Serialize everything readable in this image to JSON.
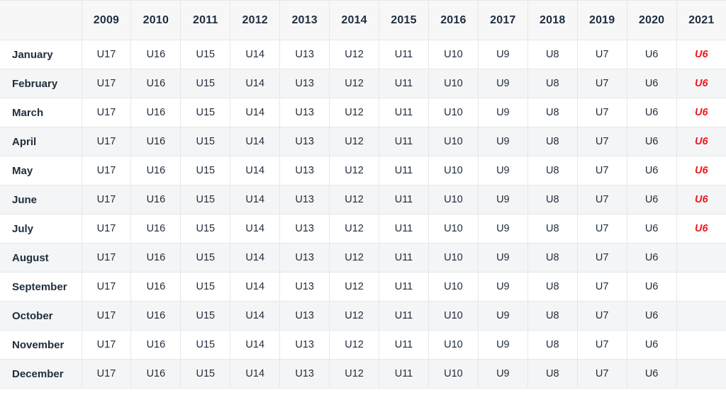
{
  "table": {
    "corner_label": "",
    "years": [
      "2009",
      "2010",
      "2011",
      "2012",
      "2013",
      "2014",
      "2015",
      "2016",
      "2017",
      "2018",
      "2019",
      "2020",
      "2021"
    ],
    "rows": [
      {
        "month": "January",
        "values": [
          "U17",
          "U16",
          "U15",
          "U14",
          "U13",
          "U12",
          "U11",
          "U10",
          "U9",
          "U8",
          "U7",
          "U6",
          "U6"
        ],
        "highlight_last": true
      },
      {
        "month": "February",
        "values": [
          "U17",
          "U16",
          "U15",
          "U14",
          "U13",
          "U12",
          "U11",
          "U10",
          "U9",
          "U8",
          "U7",
          "U6",
          "U6"
        ],
        "highlight_last": true
      },
      {
        "month": "March",
        "values": [
          "U17",
          "U16",
          "U15",
          "U14",
          "U13",
          "U12",
          "U11",
          "U10",
          "U9",
          "U8",
          "U7",
          "U6",
          "U6"
        ],
        "highlight_last": true
      },
      {
        "month": "April",
        "values": [
          "U17",
          "U16",
          "U15",
          "U14",
          "U13",
          "U12",
          "U11",
          "U10",
          "U9",
          "U8",
          "U7",
          "U6",
          "U6"
        ],
        "highlight_last": true
      },
      {
        "month": "May",
        "values": [
          "U17",
          "U16",
          "U15",
          "U14",
          "U13",
          "U12",
          "U11",
          "U10",
          "U9",
          "U8",
          "U7",
          "U6",
          "U6"
        ],
        "highlight_last": true
      },
      {
        "month": "June",
        "values": [
          "U17",
          "U16",
          "U15",
          "U14",
          "U13",
          "U12",
          "U11",
          "U10",
          "U9",
          "U8",
          "U7",
          "U6",
          "U6"
        ],
        "highlight_last": true
      },
      {
        "month": "July",
        "values": [
          "U17",
          "U16",
          "U15",
          "U14",
          "U13",
          "U12",
          "U11",
          "U10",
          "U9",
          "U8",
          "U7",
          "U6",
          "U6"
        ],
        "highlight_last": true
      },
      {
        "month": "August",
        "values": [
          "U17",
          "U16",
          "U15",
          "U14",
          "U13",
          "U12",
          "U11",
          "U10",
          "U9",
          "U8",
          "U7",
          "U6",
          ""
        ],
        "highlight_last": false
      },
      {
        "month": "September",
        "values": [
          "U17",
          "U16",
          "U15",
          "U14",
          "U13",
          "U12",
          "U11",
          "U10",
          "U9",
          "U8",
          "U7",
          "U6",
          ""
        ],
        "highlight_last": false
      },
      {
        "month": "October",
        "values": [
          "U17",
          "U16",
          "U15",
          "U14",
          "U13",
          "U12",
          "U11",
          "U10",
          "U9",
          "U8",
          "U7",
          "U6",
          ""
        ],
        "highlight_last": false
      },
      {
        "month": "November",
        "values": [
          "U17",
          "U16",
          "U15",
          "U14",
          "U13",
          "U12",
          "U11",
          "U10",
          "U9",
          "U8",
          "U7",
          "U6",
          ""
        ],
        "highlight_last": false
      },
      {
        "month": "December",
        "values": [
          "U17",
          "U16",
          "U15",
          "U14",
          "U13",
          "U12",
          "U11",
          "U10",
          "U9",
          "U8",
          "U7",
          "U6",
          ""
        ],
        "highlight_last": false
      }
    ],
    "colors": {
      "text": "#1f2d3d",
      "highlight_text": "#f2181f",
      "header_bg": "#f7f7f8",
      "row_alt_bg": "#f4f5f6",
      "border": "#e6e7e9"
    }
  }
}
